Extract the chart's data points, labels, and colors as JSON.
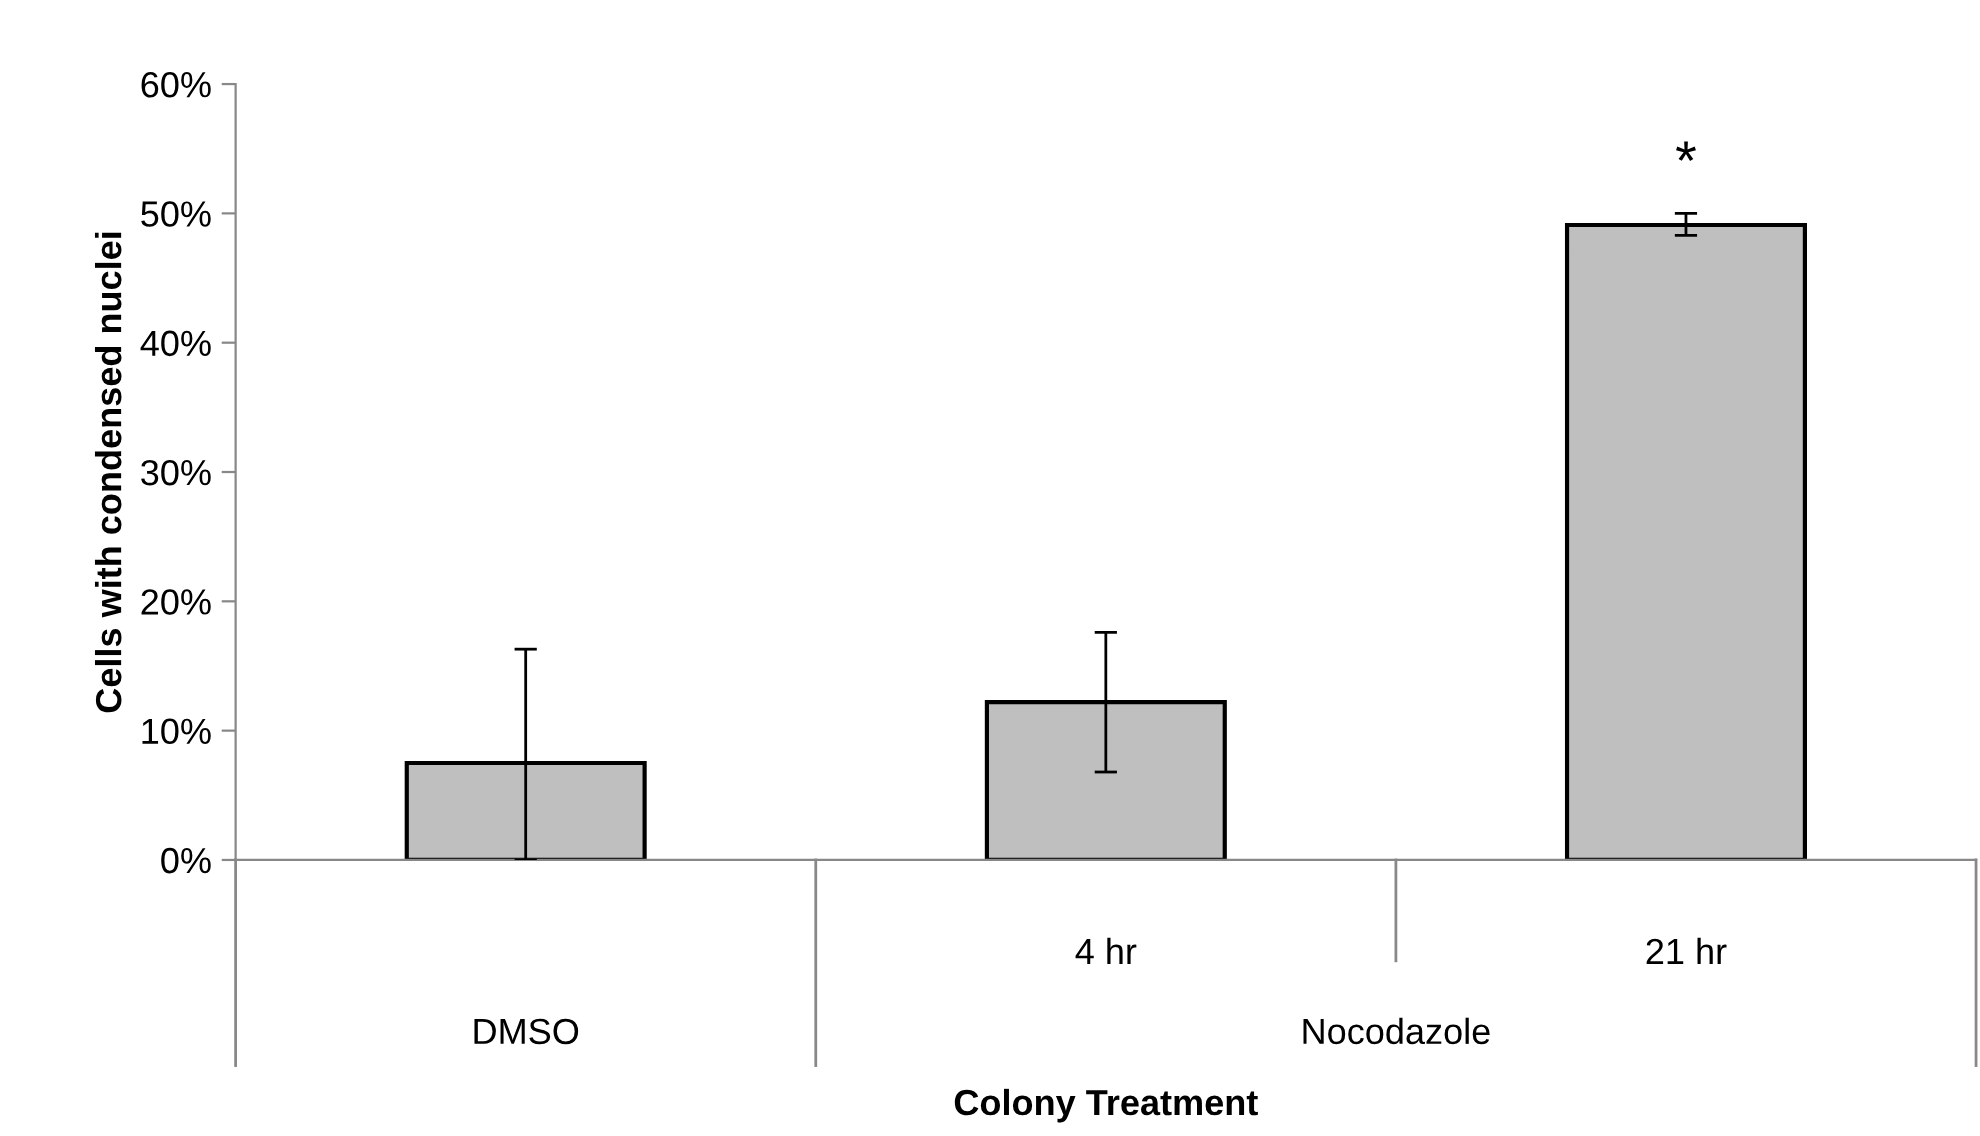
{
  "chart_data": {
    "type": "bar",
    "xlabel": "Colony Treatment",
    "ylabel": "Cells with condensed nuclei",
    "categories": [
      null,
      "4 hr",
      "21 hr"
    ],
    "values": [
      7.5,
      12.2,
      49.1
    ],
    "errors": [
      [
        0,
        16.3
      ],
      [
        6.8,
        17.6
      ],
      [
        48.3,
        50.0
      ]
    ],
    "color": "#bfbfbf",
    "ylim": [
      0,
      60
    ],
    "yticks": [
      {
        "value": 0,
        "label": "0%"
      },
      {
        "value": 10,
        "label": "10%"
      },
      {
        "value": 20,
        "label": "20%"
      },
      {
        "value": 30,
        "label": "30%"
      },
      {
        "value": 40,
        "label": "40%"
      },
      {
        "value": 50,
        "label": "50%"
      },
      {
        "value": 60,
        "label": "60%"
      }
    ],
    "annotations": [
      "DMSO",
      "Nocodazole",
      "*"
    ],
    "grid": false,
    "legend": false
  }
}
